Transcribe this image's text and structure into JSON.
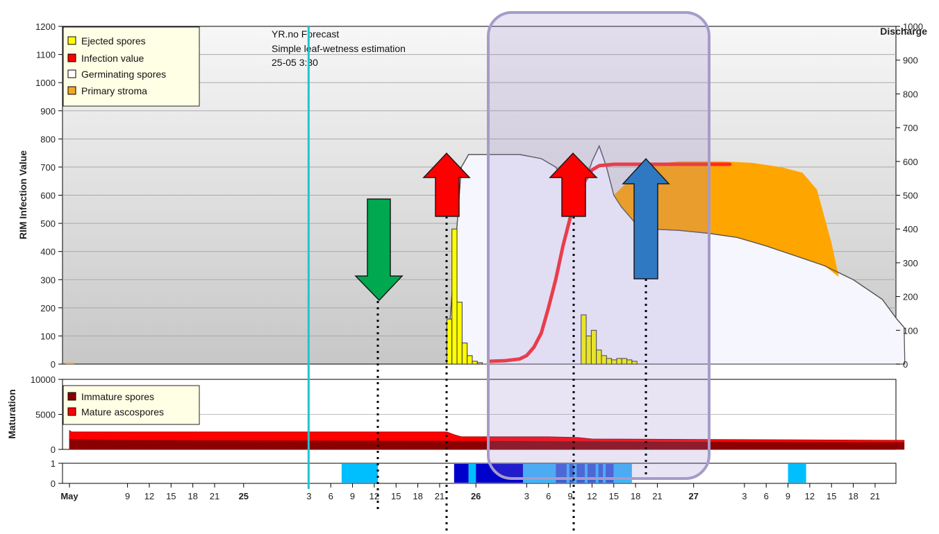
{
  "chart_data": [
    {
      "type": "area",
      "ylabel": "RIM Infection Value",
      "ylabel_right": "Discharge",
      "ylim": [
        0,
        1200
      ],
      "ylim_right": [
        0,
        1000
      ],
      "y_ticks": [
        "0",
        "100",
        "200",
        "300",
        "400",
        "500",
        "600",
        "700",
        "800",
        "900",
        "1000",
        "1100",
        "1200"
      ],
      "y_ticks_right": [
        "0",
        "100",
        "200",
        "300",
        "400",
        "500",
        "600",
        "700",
        "800",
        "900",
        "1000"
      ],
      "x_tick_labels": [
        {
          "label": "May",
          "day": 0,
          "bold": true
        },
        {
          "label": "9",
          "day": 8
        },
        {
          "label": "12",
          "day": 11
        },
        {
          "label": "15",
          "day": 14
        },
        {
          "label": "18",
          "day": 17
        },
        {
          "label": "21",
          "day": 20
        },
        {
          "label": "25",
          "day": 24,
          "bold": true
        },
        {
          "label": "3",
          "day": 33
        },
        {
          "label": "6",
          "day": 36
        },
        {
          "label": "9",
          "day": 39
        },
        {
          "label": "12",
          "day": 42
        },
        {
          "label": "15",
          "day": 45
        },
        {
          "label": "18",
          "day": 48
        },
        {
          "label": "21",
          "day": 51
        },
        {
          "label": "26",
          "day": 56,
          "bold": true
        },
        {
          "label": "3",
          "day": 63
        },
        {
          "label": "6",
          "day": 66
        },
        {
          "label": "9",
          "day": 69
        },
        {
          "label": "12",
          "day": 72
        },
        {
          "label": "15",
          "day": 75
        },
        {
          "label": "18",
          "day": 78
        },
        {
          "label": "21",
          "day": 81
        },
        {
          "label": "27",
          "day": 86,
          "bold": true
        },
        {
          "label": "3",
          "day": 93
        },
        {
          "label": "6",
          "day": 96
        },
        {
          "label": "9",
          "day": 99
        },
        {
          "label": "12",
          "day": 102
        },
        {
          "label": "15",
          "day": 105
        },
        {
          "label": "18",
          "day": 108
        },
        {
          "label": "21",
          "day": 111
        }
      ],
      "forecast_line_day": 33,
      "annotation_lines": [
        "YR.no Forecast",
        "Simple leaf-wetness estimation",
        "25-05 3:30"
      ],
      "legend": [
        {
          "label": "Ejected spores",
          "color": "#ffff00"
        },
        {
          "label": "Infection value",
          "color": "#ff0000"
        },
        {
          "label": "Germinating spores",
          "color": "#ffffff"
        },
        {
          "label": "Primary stroma",
          "color": "#f5a623"
        }
      ],
      "germinating_spores": [
        [
          52,
          0
        ],
        [
          54,
          700
        ],
        [
          55,
          745
        ],
        [
          62,
          745
        ],
        [
          65,
          730
        ],
        [
          67,
          700
        ],
        [
          69,
          620
        ],
        [
          70,
          560
        ],
        [
          71,
          640
        ],
        [
          72,
          720
        ],
        [
          73,
          775
        ],
        [
          74,
          700
        ],
        [
          75,
          600
        ],
        [
          76,
          560
        ],
        [
          78,
          500
        ],
        [
          80,
          480
        ],
        [
          84,
          475
        ],
        [
          88,
          465
        ],
        [
          92,
          450
        ],
        [
          96,
          420
        ],
        [
          100,
          385
        ],
        [
          104,
          350
        ],
        [
          108,
          300
        ],
        [
          112,
          230
        ],
        [
          114,
          160
        ],
        [
          115,
          130
        ],
        [
          115.1,
          0
        ]
      ],
      "primary_stroma": [
        [
          75,
          600
        ],
        [
          77,
          650
        ],
        [
          79,
          700
        ],
        [
          80,
          710
        ],
        [
          84,
          720
        ],
        [
          90,
          720
        ],
        [
          94,
          715
        ],
        [
          98,
          700
        ],
        [
          101,
          680
        ],
        [
          103,
          620
        ],
        [
          105,
          430
        ],
        [
          106,
          310
        ],
        [
          104,
          350
        ],
        [
          100,
          385
        ],
        [
          96,
          420
        ],
        [
          92,
          450
        ],
        [
          88,
          465
        ],
        [
          84,
          475
        ],
        [
          80,
          480
        ],
        [
          78,
          500
        ],
        [
          76,
          560
        ],
        [
          75,
          600
        ]
      ],
      "infection_value": [
        [
          58,
          10
        ],
        [
          60,
          12
        ],
        [
          62,
          18
        ],
        [
          63,
          30
        ],
        [
          64,
          60
        ],
        [
          65,
          110
        ],
        [
          66,
          200
        ],
        [
          67,
          300
        ],
        [
          68,
          420
        ],
        [
          69,
          520
        ],
        [
          70,
          600
        ],
        [
          71,
          650
        ],
        [
          72,
          690
        ],
        [
          73,
          705
        ],
        [
          75,
          710
        ],
        [
          80,
          710
        ],
        [
          85,
          710
        ],
        [
          91,
          710
        ]
      ],
      "ejected_spores": [
        [
          52,
          160
        ],
        [
          52.7,
          480
        ],
        [
          53.4,
          220
        ],
        [
          54.1,
          75
        ],
        [
          54.8,
          30
        ],
        [
          55.5,
          10
        ],
        [
          56.2,
          5
        ],
        [
          70.5,
          175
        ],
        [
          71.2,
          100
        ],
        [
          71.9,
          120
        ],
        [
          72.6,
          50
        ],
        [
          73.3,
          30
        ],
        [
          74,
          20
        ],
        [
          74.7,
          15
        ],
        [
          75.4,
          20
        ],
        [
          76.1,
          20
        ],
        [
          76.8,
          15
        ],
        [
          77.5,
          10
        ]
      ]
    },
    {
      "type": "area",
      "ylabel": "Maturation",
      "ylim": [
        0,
        10000
      ],
      "y_ticks": [
        "0",
        "5000",
        "10000"
      ],
      "legend": [
        {
          "label": "Immature spores",
          "color": "#8b0000"
        },
        {
          "label": "Mature ascospores",
          "color": "#ff0000"
        }
      ],
      "total": [
        [
          0,
          2700
        ],
        [
          0.3,
          2500
        ],
        [
          52,
          2500
        ],
        [
          53,
          2100
        ],
        [
          54,
          1800
        ],
        [
          66,
          1800
        ],
        [
          70,
          1700
        ],
        [
          72,
          1500
        ],
        [
          115,
          1300
        ]
      ],
      "immature": [
        [
          0,
          1500
        ],
        [
          6,
          1350
        ],
        [
          20,
          1300
        ],
        [
          40,
          1250
        ],
        [
          60,
          1200
        ],
        [
          70,
          1150
        ],
        [
          80,
          1100
        ],
        [
          95,
          1050
        ],
        [
          115,
          1000
        ]
      ]
    },
    {
      "type": "heatmap",
      "ylim": [
        0,
        1
      ],
      "y_ticks": [
        "0",
        "1"
      ],
      "wetness_bands": [
        {
          "start": 37.5,
          "end": 42.5,
          "color": "#00bfff"
        },
        {
          "start": 53,
          "end": 55,
          "color": "#0000cd"
        },
        {
          "start": 55,
          "end": 56,
          "color": "#00bfff"
        },
        {
          "start": 56,
          "end": 62.5,
          "color": "#0000cd"
        },
        {
          "start": 62.5,
          "end": 67,
          "color": "#38b6ff"
        },
        {
          "start": 67,
          "end": 75,
          "color": "#3a5fd9"
        },
        {
          "start": 75,
          "end": 77.5,
          "color": "#38b6ff"
        },
        {
          "start": 99,
          "end": 101.5,
          "color": "#00bfff"
        }
      ]
    }
  ]
}
